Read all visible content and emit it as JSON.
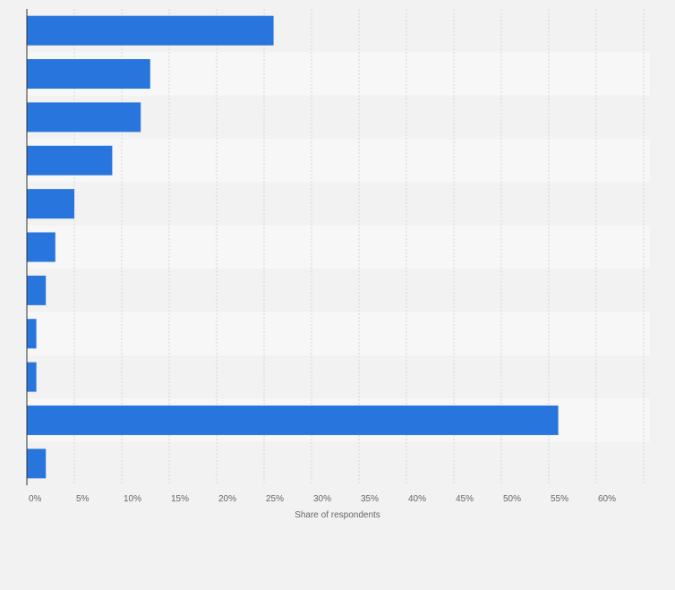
{
  "chart_data": {
    "type": "bar",
    "orientation": "horizontal",
    "categories": [
      "",
      "",
      "",
      "",
      "",
      "",
      "",
      "",
      "",
      "",
      ""
    ],
    "values": [
      26,
      13,
      12,
      9,
      5,
      3,
      2,
      1,
      1,
      56,
      2
    ],
    "xlabel": "Share of respondents",
    "ylabel": "",
    "xlim": [
      0,
      65
    ],
    "x_ticks": [
      "0%",
      "5%",
      "10%",
      "15%",
      "20%",
      "25%",
      "30%",
      "35%",
      "40%",
      "45%",
      "50%",
      "55%",
      "60%"
    ],
    "grid": true,
    "bar_color": "#2876dd",
    "band_colors": [
      "#f2f2f2",
      "#f7f7f8"
    ]
  }
}
